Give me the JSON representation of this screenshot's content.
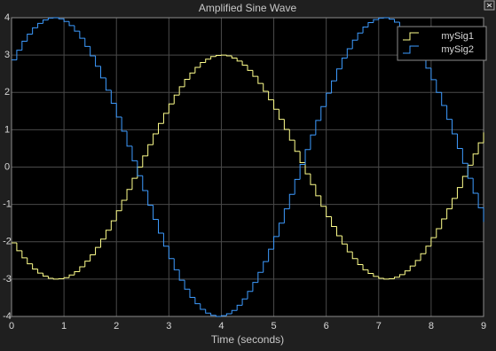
{
  "chart_data": {
    "type": "line",
    "step": true,
    "title": "Amplified Sine Wave",
    "xlabel": "Time (seconds)",
    "x": [
      0,
      0.1,
      0.2,
      0.3,
      0.4,
      0.5,
      0.6,
      0.7,
      0.8,
      0.9,
      1,
      1.1,
      1.2,
      1.3,
      1.4,
      1.5,
      1.6,
      1.7,
      1.8,
      1.9,
      2,
      2.1,
      2.2,
      2.3,
      2.4,
      2.5,
      2.6,
      2.7,
      2.8,
      2.9,
      3,
      3.1,
      3.2,
      3.3,
      3.4,
      3.5,
      3.6,
      3.7,
      3.8,
      3.9,
      4,
      4.1,
      4.2,
      4.3,
      4.4,
      4.5,
      4.6,
      4.7,
      4.8,
      4.9,
      5,
      5.1,
      5.2,
      5.3,
      5.4,
      5.5,
      5.6,
      5.7,
      5.8,
      5.9,
      6,
      6.1,
      6.2,
      6.3,
      6.4,
      6.5,
      6.6,
      6.7,
      6.8,
      6.9,
      7,
      7.1,
      7.2,
      7.3,
      7.4,
      7.5,
      7.6,
      7.7,
      7.8,
      7.9,
      8,
      8.1,
      8.2,
      8.3,
      8.4,
      8.5,
      8.6,
      8.7,
      8.8,
      8.9,
      9
    ],
    "series": [
      {
        "name": "mySig1",
        "color": "#ffff8c",
        "values": [
          -2.03,
          -2.24,
          -2.43,
          -2.59,
          -2.73,
          -2.84,
          -2.92,
          -2.98,
          -3.0,
          -2.99,
          -2.96,
          -2.89,
          -2.8,
          -2.67,
          -2.52,
          -2.35,
          -2.15,
          -1.93,
          -1.69,
          -1.44,
          -1.17,
          -0.89,
          -0.6,
          -0.3,
          0,
          0.3,
          0.6,
          0.89,
          1.17,
          1.44,
          1.69,
          1.93,
          2.15,
          2.35,
          2.52,
          2.67,
          2.8,
          2.89,
          2.96,
          2.99,
          3.0,
          2.98,
          2.92,
          2.84,
          2.73,
          2.59,
          2.43,
          2.24,
          2.03,
          1.8,
          1.55,
          1.28,
          1.01,
          0.72,
          0.42,
          0.12,
          -0.18,
          -0.47,
          -0.77,
          -1.05,
          -1.33,
          -1.59,
          -1.84,
          -2.06,
          -2.27,
          -2.45,
          -2.61,
          -2.75,
          -2.85,
          -2.93,
          -2.98,
          -3.0,
          -2.99,
          -2.95,
          -2.88,
          -2.78,
          -2.65,
          -2.5,
          -2.32,
          -2.12,
          -1.89,
          -1.65,
          -1.39,
          -1.12,
          -0.84,
          -0.55,
          -0.25,
          0.05,
          0.35,
          0.65,
          0.93
        ]
      },
      {
        "name": "mySig2",
        "color": "#3d9bff",
        "values": [
          2.87,
          3.13,
          3.37,
          3.56,
          3.73,
          3.85,
          3.94,
          3.99,
          4.0,
          3.97,
          3.9,
          3.79,
          3.64,
          3.45,
          3.23,
          2.98,
          2.7,
          2.39,
          2.06,
          1.71,
          1.34,
          0.96,
          0.56,
          0.17,
          -0.23,
          -0.63,
          -1.02,
          -1.4,
          -1.77,
          -2.12,
          -2.45,
          -2.75,
          -3.03,
          -3.27,
          -3.49,
          -3.66,
          -3.81,
          -3.91,
          -3.97,
          -4.0,
          -3.98,
          -3.93,
          -3.84,
          -3.7,
          -3.53,
          -3.33,
          -3.09,
          -2.82,
          -2.53,
          -2.2,
          -1.86,
          -1.5,
          -1.12,
          -0.73,
          -0.33,
          0.07,
          0.47,
          0.86,
          1.25,
          1.62,
          1.98,
          2.31,
          2.63,
          2.92,
          3.17,
          3.4,
          3.59,
          3.75,
          3.87,
          3.95,
          3.99,
          4.0,
          3.96,
          3.88,
          3.76,
          3.61,
          3.42,
          3.19,
          2.94,
          2.65,
          2.34,
          2.0,
          1.65,
          1.28,
          0.89,
          0.5,
          0.1,
          -0.3,
          -0.7,
          -1.09,
          -1.47
        ]
      }
    ],
    "xlim": [
      0,
      9
    ],
    "ylim": [
      -4,
      4
    ],
    "xticks": [
      0,
      1,
      2,
      3,
      4,
      5,
      6,
      7,
      8,
      9
    ],
    "yticks": [
      -4,
      -3,
      -2,
      -1,
      0,
      1,
      2,
      3,
      4
    ],
    "grid": true,
    "legend": "northeast"
  }
}
